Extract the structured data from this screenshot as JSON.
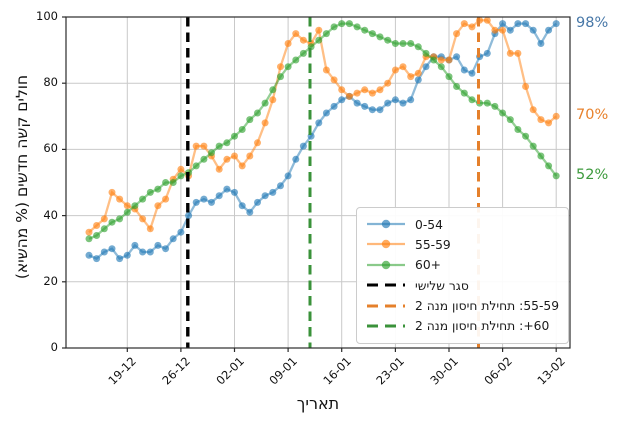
{
  "chart_data": {
    "type": "line",
    "title": "",
    "xlabel": "תאריך",
    "ylabel": "חולים קשה חדשים (% מהשיא)",
    "ylim": [
      0,
      100
    ],
    "grid": true,
    "legend_position": "lower right",
    "x": [
      "14-12",
      "15-12",
      "16-12",
      "17-12",
      "18-12",
      "19-12",
      "20-12",
      "21-12",
      "22-12",
      "23-12",
      "24-12",
      "25-12",
      "26-12",
      "27-12",
      "28-12",
      "29-12",
      "30-12",
      "31-12",
      "01-01",
      "02-01",
      "03-01",
      "04-01",
      "05-01",
      "06-01",
      "07-01",
      "08-01",
      "09-01",
      "10-01",
      "11-01",
      "12-01",
      "13-01",
      "14-01",
      "15-01",
      "16-01",
      "17-01",
      "18-01",
      "19-01",
      "20-01",
      "21-01",
      "22-01",
      "23-01",
      "24-01",
      "25-01",
      "26-01",
      "27-01",
      "28-01",
      "29-01",
      "30-01",
      "31-01",
      "01-02",
      "02-02",
      "03-02",
      "04-02",
      "05-02",
      "06-02",
      "07-02",
      "08-02",
      "09-02",
      "10-02",
      "11-02",
      "12-02",
      "13-02"
    ],
    "series": [
      {
        "name": "0-54",
        "color": "#1f77b4",
        "values": [
          28,
          27,
          29,
          30,
          27,
          28,
          31,
          29,
          29,
          31,
          30,
          33,
          35,
          40,
          44,
          45,
          44,
          46,
          48,
          47,
          43,
          41,
          44,
          46,
          47,
          49,
          52,
          57,
          61,
          64,
          68,
          71,
          73,
          75,
          76,
          74,
          73,
          72,
          72,
          74,
          75,
          74,
          75,
          81,
          85,
          88,
          88,
          87,
          88,
          84,
          83,
          88,
          89,
          95,
          98,
          96,
          98,
          98,
          96,
          92,
          96,
          98
        ]
      },
      {
        "name": "55-59",
        "color": "#ff7f0e",
        "values": [
          35,
          37,
          39,
          47,
          45,
          43,
          42,
          39,
          36,
          43,
          45,
          51,
          54,
          52,
          61,
          61,
          58,
          54,
          57,
          58,
          55,
          58,
          62,
          68,
          75,
          85,
          92,
          95,
          93,
          92,
          96,
          84,
          81,
          78,
          76,
          77,
          78,
          77,
          78,
          80,
          84,
          85,
          82,
          83,
          88,
          88,
          87,
          87,
          95,
          98,
          97,
          99,
          99,
          96,
          96,
          89,
          89,
          79,
          72,
          69,
          68,
          70
        ]
      },
      {
        "name": "60+",
        "color": "#2ca02c",
        "values": [
          33,
          34,
          36,
          38,
          39,
          41,
          43,
          45,
          47,
          48,
          50,
          50,
          52,
          53,
          55,
          57,
          59,
          61,
          62,
          64,
          66,
          69,
          71,
          74,
          78,
          82,
          85,
          87,
          89,
          91,
          93,
          95,
          97,
          98,
          98,
          97,
          96,
          95,
          94,
          93,
          92,
          92,
          92,
          91,
          89,
          87,
          85,
          82,
          79,
          77,
          75,
          74,
          74,
          73,
          71,
          69,
          66,
          64,
          61,
          58,
          55,
          52
        ]
      }
    ],
    "vlines": [
      {
        "name": "third-lockdown",
        "label": "סגר שלישי",
        "color": "#000000",
        "style": "dashed",
        "x_index": 12.9,
        "width": 3.4
      },
      {
        "name": "vaccine-dose2-60plus",
        "label": "60+: תחילת חיסון מנה 2",
        "color": "#3a923a",
        "style": "dashed",
        "x_index": 28.85,
        "width": 3
      },
      {
        "name": "vaccine-dose2-55-59",
        "label": "55-59: תחילת חיסון מנה 2",
        "color": "#e5802b",
        "style": "dashed",
        "x_index": 50.85,
        "width": 3
      }
    ],
    "xticks": [
      "19-12",
      "26-12",
      "02-01",
      "09-01",
      "16-01",
      "23-01",
      "30-01",
      "06-02",
      "13-02"
    ],
    "xtick_indices": [
      5,
      12,
      19,
      26,
      33,
      40,
      47,
      54,
      61
    ],
    "yticks": [
      0,
      20,
      40,
      60,
      80,
      100
    ],
    "grid_color": "#c9c9c9"
  },
  "annotations": {
    "end_labels": [
      {
        "text": "98%",
        "value": 98,
        "color": "#4878a8"
      },
      {
        "text": "70%",
        "value": 70,
        "color": "#e8822d"
      },
      {
        "text": "52%",
        "value": 52,
        "color": "#3f9b3f"
      }
    ]
  },
  "legend": {
    "items": [
      {
        "label": "0-54",
        "marker": "line-marker",
        "color": "#1f77b4",
        "rtl": false
      },
      {
        "label": "55-59",
        "marker": "line-marker",
        "color": "#ff7f0e",
        "rtl": false
      },
      {
        "label": "60+",
        "marker": "line-marker",
        "color": "#2ca02c",
        "rtl": false
      },
      {
        "label": "סגר שלישי",
        "marker": "dashed",
        "color": "#000000",
        "rtl": true
      },
      {
        "label": "55-59: תחילת חיסון מנה 2",
        "marker": "dashed",
        "color": "#e5802b",
        "rtl": true
      },
      {
        "label": "60+: תחילת חיסון מנה 2",
        "marker": "dashed",
        "color": "#3a923a",
        "rtl": true
      }
    ]
  }
}
